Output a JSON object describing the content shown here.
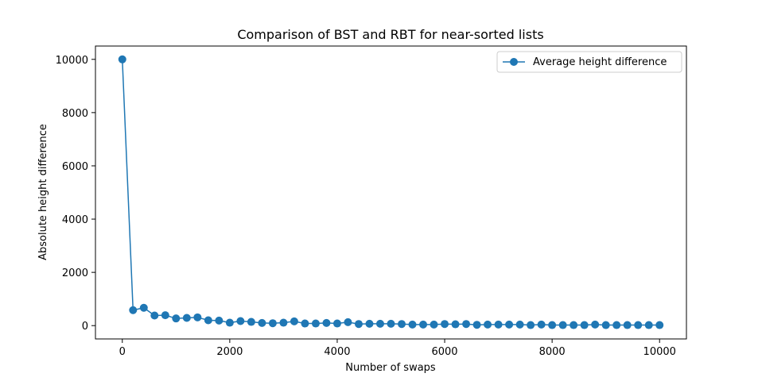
{
  "chart_data": {
    "type": "line",
    "title": "Comparison of BST and RBT for near-sorted lists",
    "xlabel": "Number of swaps",
    "ylabel": "Absolute height difference",
    "xlim": [
      -500,
      10500
    ],
    "ylim": [
      -500,
      10500
    ],
    "xticks": [
      0,
      2000,
      4000,
      6000,
      8000,
      10000
    ],
    "yticks": [
      0,
      2000,
      4000,
      6000,
      8000,
      10000
    ],
    "grid": false,
    "legend_position": "top-right",
    "series": [
      {
        "name": "Average height difference",
        "color": "#1f77b4",
        "marker": "circle",
        "x": [
          0,
          200,
          400,
          600,
          800,
          1000,
          1200,
          1400,
          1600,
          1800,
          2000,
          2200,
          2400,
          2600,
          2800,
          3000,
          3200,
          3400,
          3600,
          3800,
          4000,
          4200,
          4400,
          4600,
          4800,
          5000,
          5200,
          5400,
          5600,
          5800,
          6000,
          6200,
          6400,
          6600,
          6800,
          7000,
          7200,
          7400,
          7600,
          7800,
          8000,
          8200,
          8400,
          8600,
          8800,
          9000,
          9200,
          9400,
          9600,
          9800,
          10000
        ],
        "y": [
          9999,
          580,
          670,
          380,
          390,
          270,
          290,
          310,
          200,
          190,
          110,
          170,
          140,
          100,
          90,
          110,
          160,
          80,
          80,
          100,
          80,
          130,
          60,
          70,
          70,
          70,
          60,
          40,
          40,
          40,
          60,
          50,
          60,
          30,
          40,
          40,
          40,
          40,
          20,
          40,
          20,
          20,
          20,
          20,
          40,
          20,
          20,
          20,
          20,
          20,
          20
        ]
      }
    ]
  }
}
